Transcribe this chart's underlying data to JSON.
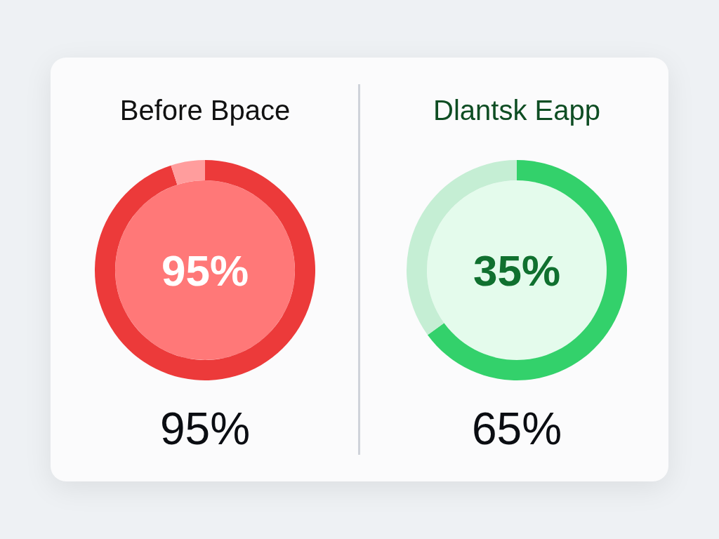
{
  "chart_data": [
    {
      "type": "donut",
      "title": "Before Bpace",
      "categories": [
        null,
        null
      ],
      "values": [
        95,
        5
      ],
      "colors": [
        "#ec3a3a",
        "#ff9d9d"
      ],
      "value_labels": [
        "95%",
        null
      ],
      "annotations": [
        "95%"
      ]
    },
    {
      "type": "donut",
      "title": "Dlantsk Eapp",
      "categories": [
        null,
        null
      ],
      "values": [
        65,
        35
      ],
      "colors": [
        "#33d16b",
        "#c5eed4"
      ],
      "value_labels": [
        "65%",
        null
      ],
      "annotations": [
        "35%"
      ]
    }
  ]
}
